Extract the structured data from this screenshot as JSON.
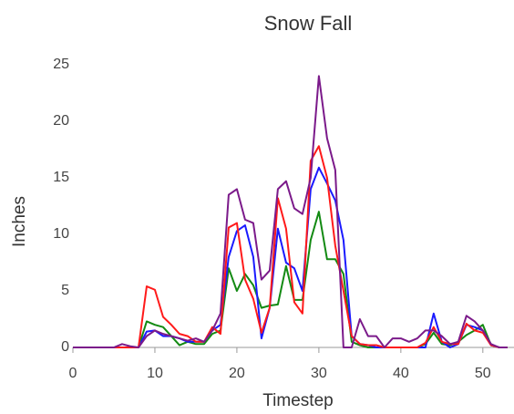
{
  "chart_data": {
    "type": "line",
    "title": "Snow Fall",
    "xlabel": "Timestep",
    "ylabel": "Inches",
    "x": [
      0,
      1,
      2,
      3,
      4,
      5,
      6,
      7,
      8,
      9,
      10,
      11,
      12,
      13,
      14,
      15,
      16,
      17,
      18,
      19,
      20,
      21,
      22,
      23,
      24,
      25,
      26,
      27,
      28,
      29,
      30,
      31,
      32,
      33,
      34,
      35,
      36,
      37,
      38,
      39,
      40,
      41,
      42,
      43,
      44,
      45,
      46,
      47,
      48,
      49,
      50,
      51,
      52,
      53
    ],
    "series": [
      {
        "color": "#138a13",
        "values": [
          0,
          0,
          0,
          0,
          0,
          0,
          0,
          0,
          0,
          2.3,
          2,
          1.8,
          1,
          0.2,
          0.5,
          0.3,
          0.3,
          1.2,
          1.5,
          7,
          5,
          6.5,
          5.5,
          3.5,
          3.7,
          3.8,
          7.2,
          4.2,
          4.2,
          9.5,
          12,
          7.8,
          7.8,
          6.5,
          0.5,
          0.2,
          0,
          0,
          0,
          0,
          0,
          0,
          0,
          0.3,
          1.3,
          0.3,
          0.2,
          0.5,
          1.1,
          1.5,
          2,
          0.2,
          0,
          0
        ]
      },
      {
        "color": "#1a1aff",
        "values": [
          0,
          0,
          0,
          0,
          0,
          0,
          0,
          0,
          0,
          1.4,
          1.5,
          1,
          1,
          0.8,
          0.5,
          0.5,
          0.5,
          1.5,
          2,
          8,
          10.3,
          10.8,
          8,
          0.8,
          3.5,
          10.5,
          7.5,
          7,
          5,
          14,
          15.9,
          14.5,
          13,
          9.5,
          1,
          0.3,
          0.2,
          0,
          0,
          0,
          0,
          0,
          0,
          0,
          3,
          0.5,
          0,
          0.3,
          2,
          1.8,
          1.5,
          0.2,
          0,
          0
        ]
      },
      {
        "color": "#ff1a1a",
        "values": [
          0,
          0,
          0,
          0,
          0,
          0,
          0,
          0,
          0,
          5.4,
          5.1,
          2.7,
          2,
          1.2,
          1,
          0.5,
          0.5,
          1.8,
          1.2,
          10.6,
          11,
          6,
          4.3,
          1.3,
          3.5,
          13.2,
          10.5,
          4,
          3,
          16.5,
          17.8,
          15,
          9,
          5,
          1,
          0.3,
          0.2,
          0.2,
          0,
          0,
          0,
          0,
          0,
          0.4,
          1.8,
          0.5,
          0.3,
          0.3,
          2.1,
          1.5,
          1.3,
          0.2,
          0,
          0
        ]
      },
      {
        "color": "#7b1a8a",
        "values": [
          0,
          0,
          0,
          0,
          0,
          0,
          0.3,
          0.1,
          0,
          1,
          1.5,
          1.2,
          1,
          0.8,
          0.6,
          0.8,
          0.5,
          1.5,
          3,
          13.5,
          14,
          11.3,
          11,
          6,
          6.8,
          14,
          14.7,
          12.3,
          11.8,
          15,
          24,
          18.5,
          15.7,
          0,
          0,
          2.5,
          1,
          1,
          0,
          0.8,
          0.8,
          0.5,
          0.8,
          1.5,
          1.5,
          1,
          0.3,
          0.5,
          2.8,
          2.3,
          1.5,
          0.3,
          0,
          0
        ]
      }
    ],
    "xlim": [
      0,
      53.8
    ],
    "xticks": [
      0,
      10,
      20,
      30,
      40,
      50
    ],
    "ylim": [
      0,
      25
    ],
    "yticks": [
      0,
      5,
      10,
      15,
      20,
      25
    ]
  }
}
